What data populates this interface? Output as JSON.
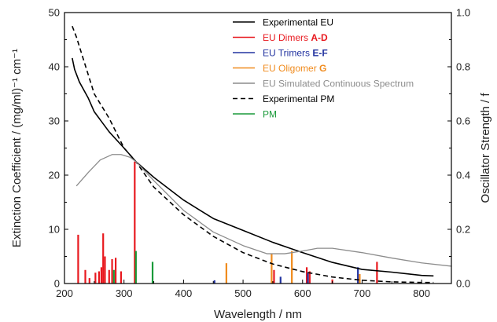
{
  "chart_data": {
    "type": "line",
    "xlabel": "Wavelength / nm",
    "ylabel": "Extinction Coefficient / (mg/ml)⁻¹ cm⁻¹",
    "y2label": "Oscillator Strength / f",
    "xlim": [
      200,
      850
    ],
    "ylim": [
      0,
      50
    ],
    "y2lim": [
      0,
      1.0
    ],
    "x_ticks": [
      200,
      300,
      400,
      500,
      600,
      700,
      800
    ],
    "y_ticks": [
      0,
      10,
      20,
      30,
      40,
      50
    ],
    "y2_ticks": [
      0.0,
      0.2,
      0.4,
      0.6,
      0.8,
      1.0
    ],
    "grid": false,
    "legend_position": "top-right",
    "legend": [
      {
        "key": "exp_eu",
        "text": "Experimental EU",
        "bold": "",
        "color": "#000000",
        "dash": ""
      },
      {
        "key": "dimers",
        "text": "EU Dimers ",
        "bold": "A-D",
        "color": "#e8191f",
        "dash": ""
      },
      {
        "key": "trimers",
        "text": "EU Trimers ",
        "bold": "E-F",
        "color": "#2233a0",
        "dash": ""
      },
      {
        "key": "oligomer",
        "text": "EU Oligomer ",
        "bold": "G",
        "color": "#f08b1d",
        "dash": ""
      },
      {
        "key": "simulated",
        "text": "EU Simulated Continuous Spectrum",
        "bold": "",
        "color": "#8c8c8c",
        "dash": ""
      },
      {
        "key": "exp_pm",
        "text": "Experimental PM",
        "bold": "",
        "color": "#000000",
        "dash": "6,4"
      },
      {
        "key": "pm",
        "text": "PM",
        "bold": "",
        "color": "#1a9a3a",
        "dash": ""
      }
    ],
    "lines": [
      {
        "key": "exp_eu",
        "color": "#000000",
        "width": 1.6,
        "dash": "",
        "points": [
          [
            213,
            41.6
          ],
          [
            217,
            39.5
          ],
          [
            225,
            37.2
          ],
          [
            240,
            34.2
          ],
          [
            250,
            31.7
          ],
          [
            275,
            28.0
          ],
          [
            300,
            25.0
          ],
          [
            320,
            22.5
          ],
          [
            350,
            19.6
          ],
          [
            400,
            15.4
          ],
          [
            450,
            12.0
          ],
          [
            500,
            9.8
          ],
          [
            550,
            7.6
          ],
          [
            600,
            5.7
          ],
          [
            650,
            3.9
          ],
          [
            700,
            2.6
          ],
          [
            750,
            2.1
          ],
          [
            800,
            1.5
          ],
          [
            820,
            1.4
          ]
        ]
      },
      {
        "key": "exp_pm",
        "color": "#000000",
        "width": 1.6,
        "dash": "6,4",
        "points": [
          [
            213,
            47.5
          ],
          [
            220,
            45.5
          ],
          [
            230,
            42.0
          ],
          [
            250,
            35.0
          ],
          [
            275,
            30.5
          ],
          [
            300,
            25.0
          ],
          [
            320,
            22.5
          ],
          [
            350,
            17.8
          ],
          [
            400,
            12.7
          ],
          [
            450,
            8.7
          ],
          [
            500,
            5.7
          ],
          [
            550,
            3.6
          ],
          [
            600,
            2.2
          ],
          [
            650,
            1.2
          ],
          [
            700,
            0.6
          ],
          [
            750,
            0.3
          ],
          [
            800,
            0.2
          ],
          [
            820,
            0.2
          ]
        ]
      },
      {
        "key": "simulated",
        "color": "#8c8c8c",
        "width": 1.3,
        "dash": "",
        "points": [
          [
            220,
            18.0
          ],
          [
            240,
            20.5
          ],
          [
            260,
            22.8
          ],
          [
            280,
            23.8
          ],
          [
            295,
            23.8
          ],
          [
            310,
            23.3
          ],
          [
            320,
            22.5
          ],
          [
            350,
            19.0
          ],
          [
            400,
            13.5
          ],
          [
            450,
            9.5
          ],
          [
            500,
            7.0
          ],
          [
            540,
            5.5
          ],
          [
            570,
            5.5
          ],
          [
            600,
            6.0
          ],
          [
            625,
            6.5
          ],
          [
            650,
            6.5
          ],
          [
            700,
            5.7
          ],
          [
            750,
            4.7
          ],
          [
            800,
            3.8
          ],
          [
            850,
            3.2
          ]
        ]
      }
    ],
    "sticks": [
      {
        "x": 223,
        "y": 0.18,
        "color": "#e8191f"
      },
      {
        "x": 235,
        "y": 0.05,
        "color": "#e8191f"
      },
      {
        "x": 242,
        "y": 0.02,
        "color": "#e8191f"
      },
      {
        "x": 252,
        "y": 0.04,
        "color": "#e8191f"
      },
      {
        "x": 258,
        "y": 0.045,
        "color": "#e8191f"
      },
      {
        "x": 262,
        "y": 0.06,
        "color": "#e8191f"
      },
      {
        "x": 265,
        "y": 0.185,
        "color": "#e8191f"
      },
      {
        "x": 268,
        "y": 0.1,
        "color": "#e8191f"
      },
      {
        "x": 275,
        "y": 0.05,
        "color": "#e8191f"
      },
      {
        "x": 280,
        "y": 0.09,
        "color": "#e8191f"
      },
      {
        "x": 286,
        "y": 0.095,
        "color": "#e8191f"
      },
      {
        "x": 295,
        "y": 0.045,
        "color": "#e8191f"
      },
      {
        "x": 318,
        "y": 0.45,
        "color": "#e8191f"
      },
      {
        "x": 320,
        "y": 0.12,
        "color": "#1a9a3a"
      },
      {
        "x": 283,
        "y": 0.05,
        "color": "#1a9a3a"
      },
      {
        "x": 348,
        "y": 0.08,
        "color": "#1a9a3a"
      },
      {
        "x": 452,
        "y": 0.012,
        "color": "#2233a0"
      },
      {
        "x": 472,
        "y": 0.075,
        "color": "#f08b1d"
      },
      {
        "x": 548,
        "y": 0.11,
        "color": "#f08b1d"
      },
      {
        "x": 552,
        "y": 0.05,
        "color": "#e8191f"
      },
      {
        "x": 563,
        "y": 0.025,
        "color": "#2233a0"
      },
      {
        "x": 582,
        "y": 0.12,
        "color": "#f08b1d"
      },
      {
        "x": 607,
        "y": 0.06,
        "color": "#e8191f"
      },
      {
        "x": 609,
        "y": 0.04,
        "color": "#2233a0"
      },
      {
        "x": 612,
        "y": 0.045,
        "color": "#e8191f"
      },
      {
        "x": 650,
        "y": 0.015,
        "color": "#e8191f"
      },
      {
        "x": 693,
        "y": 0.06,
        "color": "#2233a0"
      },
      {
        "x": 696,
        "y": 0.035,
        "color": "#f08b1d"
      },
      {
        "x": 725,
        "y": 0.08,
        "color": "#e8191f"
      }
    ]
  }
}
